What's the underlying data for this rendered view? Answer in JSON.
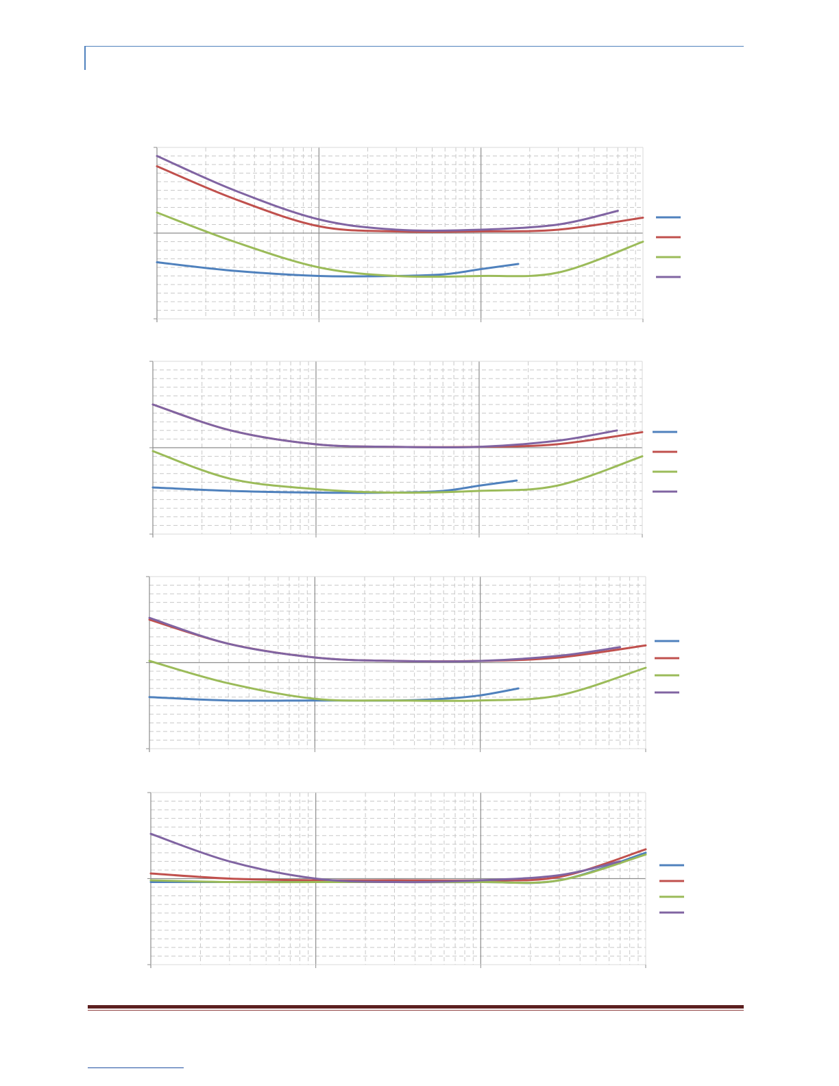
{
  "page": {
    "colors": {
      "header_rule": "#4f81bd",
      "footer_rule": "#5c1f1f",
      "footnote_rule": "#1f4fa0",
      "grid_major": "#8c8c8c",
      "grid_minor": "#c8c8c8"
    }
  },
  "chart_data": [
    {
      "type": "line",
      "xscale": "log",
      "xlim": [
        1,
        1000
      ],
      "ylim": [
        0,
        10
      ],
      "grid": true,
      "legend_position": "right",
      "series": [
        {
          "color": "#4f81bd",
          "x": [
            1,
            3,
            10,
            30,
            60,
            100,
            170
          ],
          "y": [
            3.3,
            2.8,
            2.5,
            2.5,
            2.6,
            2.9,
            3.2
          ]
        },
        {
          "color": "#c0504d",
          "x": [
            1,
            3,
            10,
            30,
            100,
            300,
            1000
          ],
          "y": [
            8.9,
            7.0,
            5.4,
            5.1,
            5.1,
            5.2,
            5.9
          ]
        },
        {
          "color": "#9bbb59",
          "x": [
            1,
            3,
            10,
            30,
            100,
            300,
            1000
          ],
          "y": [
            6.2,
            4.5,
            3.0,
            2.5,
            2.5,
            2.7,
            4.5
          ]
        },
        {
          "color": "#8064a2",
          "x": [
            1,
            3,
            10,
            30,
            100,
            300,
            700
          ],
          "y": [
            9.5,
            7.5,
            5.8,
            5.2,
            5.2,
            5.5,
            6.3
          ]
        }
      ]
    },
    {
      "type": "line",
      "xscale": "log",
      "xlim": [
        1,
        1000
      ],
      "ylim": [
        0,
        10
      ],
      "grid": true,
      "legend_position": "right",
      "series": [
        {
          "color": "#4f81bd",
          "x": [
            1,
            3,
            10,
            30,
            60,
            100,
            170
          ],
          "y": [
            2.7,
            2.5,
            2.4,
            2.4,
            2.5,
            2.8,
            3.1
          ]
        },
        {
          "color": "#c0504d",
          "x": [
            1,
            3,
            10,
            30,
            100,
            300,
            1000
          ],
          "y": [
            7.5,
            6.0,
            5.2,
            5.05,
            5.05,
            5.2,
            5.9
          ]
        },
        {
          "color": "#9bbb59",
          "x": [
            1,
            3,
            10,
            30,
            100,
            300,
            1000
          ],
          "y": [
            4.8,
            3.2,
            2.6,
            2.4,
            2.5,
            2.8,
            4.5
          ]
        },
        {
          "color": "#8064a2",
          "x": [
            1,
            3,
            10,
            30,
            100,
            300,
            700
          ],
          "y": [
            7.5,
            6.0,
            5.2,
            5.05,
            5.05,
            5.4,
            6.0
          ]
        }
      ]
    },
    {
      "type": "line",
      "xscale": "log",
      "xlim": [
        1,
        1000
      ],
      "ylim": [
        0,
        10
      ],
      "grid": true,
      "legend_position": "right",
      "series": [
        {
          "color": "#4f81bd",
          "x": [
            1,
            3,
            10,
            30,
            60,
            100,
            170
          ],
          "y": [
            3.0,
            2.8,
            2.8,
            2.8,
            2.9,
            3.1,
            3.5
          ]
        },
        {
          "color": "#c0504d",
          "x": [
            1,
            3,
            10,
            30,
            100,
            300,
            1000
          ],
          "y": [
            7.5,
            6.1,
            5.3,
            5.1,
            5.1,
            5.3,
            6.0
          ]
        },
        {
          "color": "#9bbb59",
          "x": [
            1,
            3,
            10,
            30,
            100,
            300,
            1000
          ],
          "y": [
            5.1,
            3.8,
            2.9,
            2.8,
            2.8,
            3.1,
            4.7
          ]
        },
        {
          "color": "#8064a2",
          "x": [
            1,
            3,
            10,
            30,
            100,
            300,
            700
          ],
          "y": [
            7.6,
            6.1,
            5.3,
            5.1,
            5.1,
            5.4,
            5.9
          ]
        }
      ]
    },
    {
      "type": "line",
      "xscale": "log",
      "xlim": [
        1,
        1000
      ],
      "ylim": [
        0,
        10
      ],
      "grid": true,
      "legend_position": "right",
      "series": [
        {
          "color": "#4f81bd",
          "x": [
            1,
            3,
            10,
            30,
            100,
            300,
            1000
          ],
          "y": [
            4.8,
            4.8,
            4.8,
            4.8,
            4.8,
            4.9,
            6.5
          ]
        },
        {
          "color": "#c0504d",
          "x": [
            1,
            3,
            10,
            30,
            100,
            300,
            1000
          ],
          "y": [
            5.3,
            5.0,
            4.9,
            4.9,
            4.9,
            5.1,
            6.7
          ]
        },
        {
          "color": "#9bbb59",
          "x": [
            1,
            3,
            10,
            30,
            100,
            300,
            1000
          ],
          "y": [
            4.9,
            4.8,
            4.8,
            4.8,
            4.8,
            4.9,
            6.4
          ]
        },
        {
          "color": "#8064a2",
          "x": [
            1,
            3,
            10,
            30,
            100,
            300,
            700
          ],
          "y": [
            7.6,
            6.0,
            5.0,
            4.8,
            4.9,
            5.2,
            6.0
          ]
        }
      ]
    }
  ]
}
